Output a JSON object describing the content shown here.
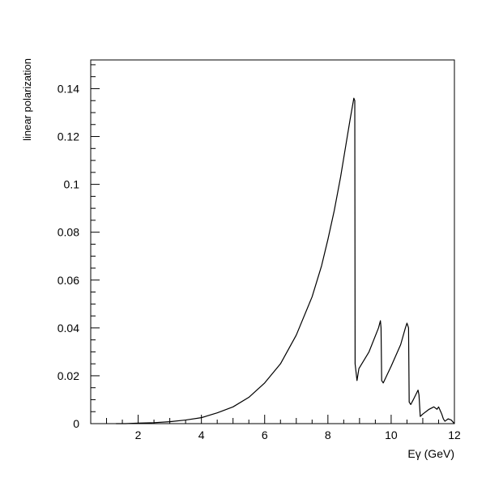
{
  "chart_data": {
    "type": "line",
    "title": "",
    "xlabel": "Eγ (GeV)",
    "ylabel": "linear polarization",
    "xlim": [
      0.5,
      12
    ],
    "ylim": [
      0,
      0.152
    ],
    "grid": false,
    "legend": "none",
    "x_ticks": [
      2,
      4,
      6,
      8,
      10,
      12
    ],
    "y_ticks": [
      0,
      0.02,
      0.04,
      0.06,
      0.08,
      0.1,
      0.12,
      0.14
    ],
    "x_tick_labels": [
      "2",
      "4",
      "6",
      "8",
      "10",
      "12"
    ],
    "y_tick_labels": [
      "0",
      "0.02",
      "0.04",
      "0.06",
      "0.08",
      "0.1",
      "0.12",
      "0.14"
    ],
    "line_color": "#000000",
    "series": [
      {
        "points": [
          [
            1.3,
            0.0
          ],
          [
            1.6,
            0.0
          ],
          [
            2.0,
            0.0002
          ],
          [
            2.5,
            0.0004
          ],
          [
            3.0,
            0.0008
          ],
          [
            3.5,
            0.0015
          ],
          [
            4.0,
            0.0025
          ],
          [
            4.5,
            0.0045
          ],
          [
            5.0,
            0.007
          ],
          [
            5.5,
            0.011
          ],
          [
            6.0,
            0.017
          ],
          [
            6.5,
            0.025
          ],
          [
            7.0,
            0.037
          ],
          [
            7.5,
            0.053
          ],
          [
            7.8,
            0.066
          ],
          [
            8.0,
            0.077
          ],
          [
            8.2,
            0.089
          ],
          [
            8.4,
            0.103
          ],
          [
            8.55,
            0.115
          ],
          [
            8.7,
            0.127
          ],
          [
            8.82,
            0.136
          ],
          [
            8.85,
            0.135
          ],
          [
            8.86,
            0.025
          ],
          [
            8.92,
            0.018
          ],
          [
            8.98,
            0.023
          ],
          [
            9.3,
            0.03
          ],
          [
            9.6,
            0.04
          ],
          [
            9.66,
            0.043
          ],
          [
            9.68,
            0.04
          ],
          [
            9.7,
            0.018
          ],
          [
            9.75,
            0.017
          ],
          [
            10.0,
            0.024
          ],
          [
            10.3,
            0.033
          ],
          [
            10.45,
            0.04
          ],
          [
            10.5,
            0.042
          ],
          [
            10.55,
            0.04
          ],
          [
            10.57,
            0.009
          ],
          [
            10.62,
            0.008
          ],
          [
            10.7,
            0.01
          ],
          [
            10.85,
            0.014
          ],
          [
            10.88,
            0.012
          ],
          [
            10.92,
            0.003
          ],
          [
            11.0,
            0.004
          ],
          [
            11.2,
            0.006
          ],
          [
            11.35,
            0.007
          ],
          [
            11.45,
            0.006
          ],
          [
            11.5,
            0.007
          ],
          [
            11.6,
            0.004
          ],
          [
            11.65,
            0.002
          ],
          [
            11.7,
            0.001
          ],
          [
            11.8,
            0.002
          ],
          [
            11.9,
            0.0015
          ],
          [
            12.0,
            0.0
          ]
        ]
      }
    ]
  }
}
